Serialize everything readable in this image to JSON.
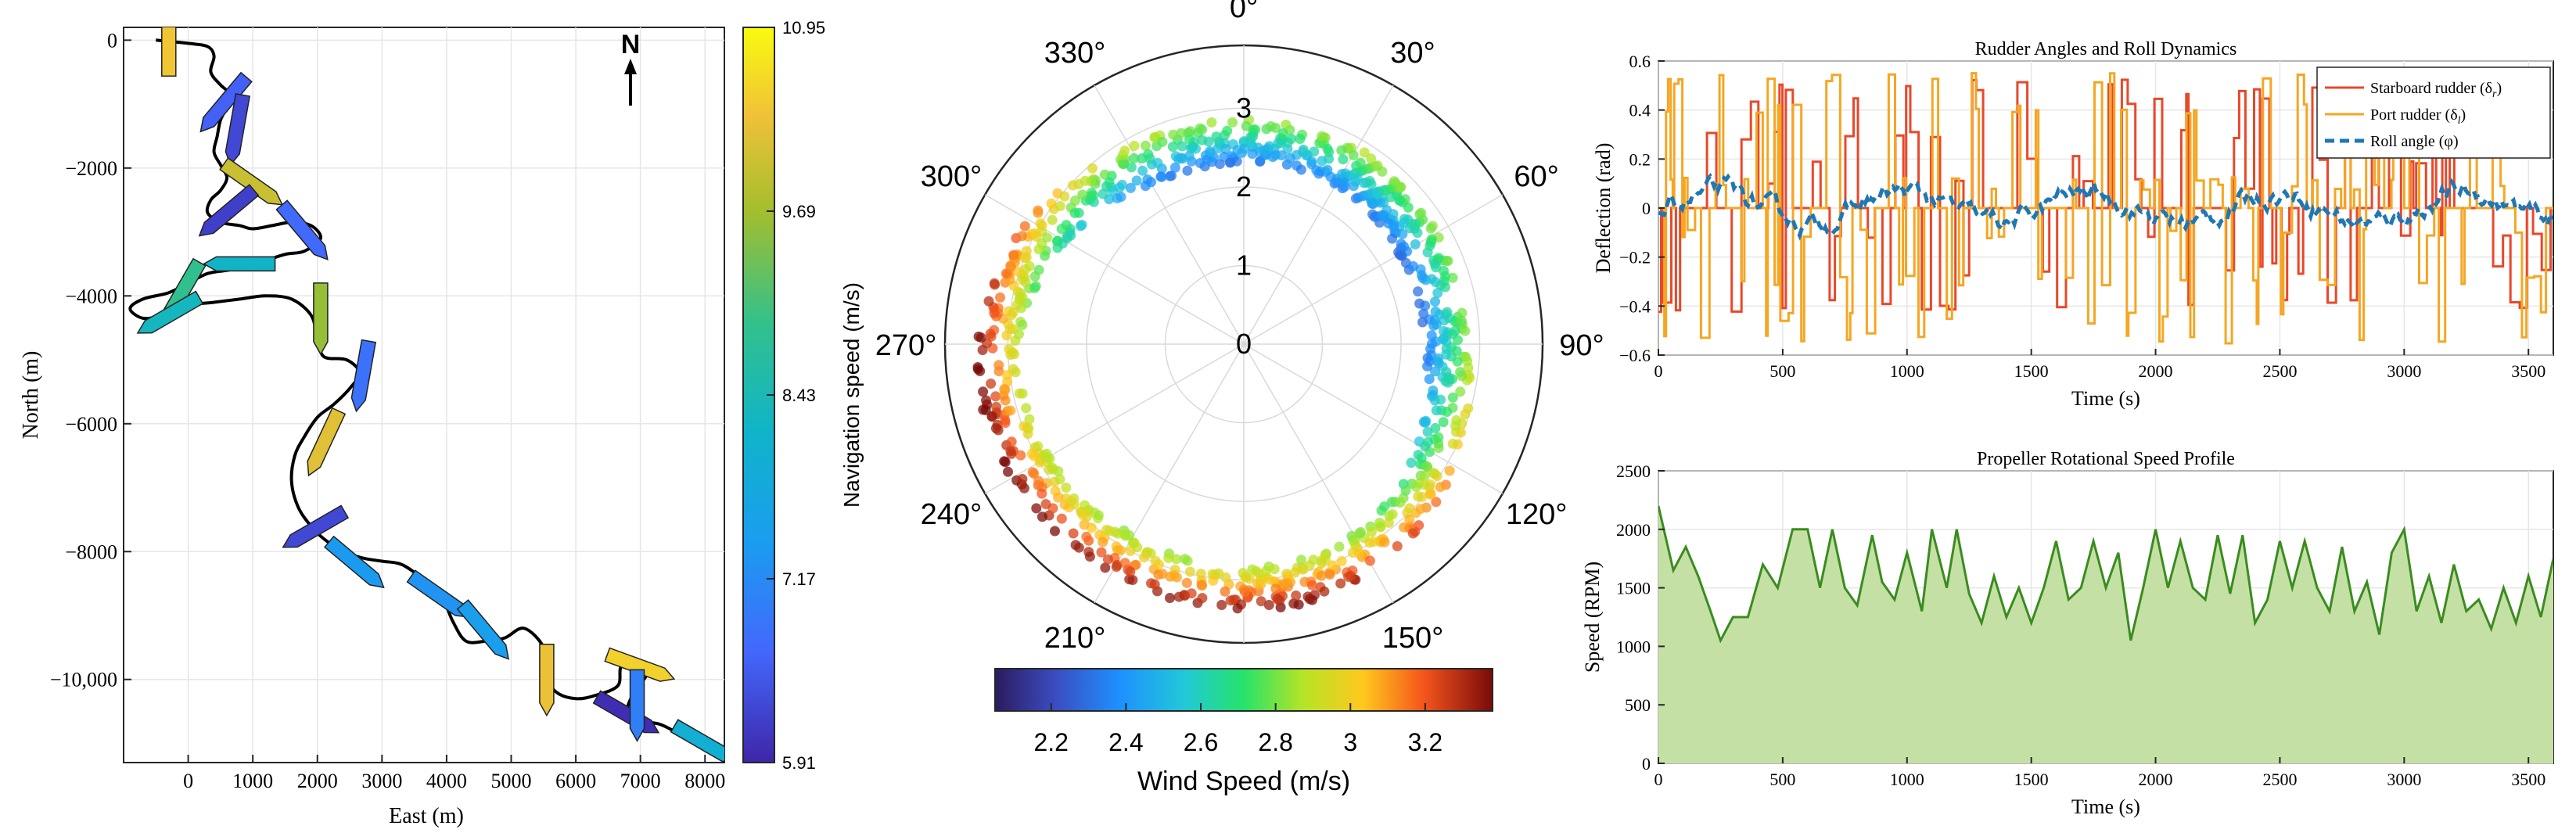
{
  "chart_data": [
    {
      "type": "scatter",
      "subtype": "trajectory",
      "xlabel": "East (m)",
      "ylabel": "North (m)",
      "xlim": [
        -1000,
        8300
      ],
      "ylim": [
        -11300,
        200
      ],
      "xticks": [
        0,
        1000,
        2000,
        3000,
        4000,
        5000,
        6000,
        7000,
        8000
      ],
      "xtick_labels": [
        "0",
        "1000",
        "2000",
        "3000",
        "4000",
        "5000",
        "6000",
        "7000",
        "8000"
      ],
      "yticks": [
        0,
        -2000,
        -4000,
        -6000,
        -8000,
        -10000
      ],
      "ytick_labels": [
        "0",
        "−2000",
        "−4000",
        "−6000",
        "−8000",
        "−10,000"
      ],
      "north_label": "N",
      "colorbar": {
        "label": "Navigation speed (m/s)",
        "min": 5.91,
        "max": 10.95,
        "ticks": [
          10.95,
          9.69,
          8.43,
          7.17,
          5.91
        ],
        "tick_labels": [
          "10.95",
          "9.69",
          "8.43",
          "7.17",
          "5.91"
        ]
      },
      "path": [
        [
          -500,
          0
        ],
        [
          0,
          -50
        ],
        [
          300,
          -100
        ],
        [
          400,
          -250
        ],
        [
          350,
          -500
        ],
        [
          500,
          -700
        ],
        [
          650,
          -850
        ],
        [
          600,
          -1050
        ],
        [
          500,
          -1250
        ],
        [
          450,
          -1500
        ],
        [
          400,
          -1750
        ],
        [
          500,
          -1950
        ],
        [
          600,
          -2150
        ],
        [
          500,
          -2350
        ],
        [
          350,
          -2500
        ],
        [
          300,
          -2700
        ],
        [
          500,
          -2850
        ],
        [
          800,
          -2900
        ],
        [
          1000,
          -2950
        ],
        [
          1300,
          -2900
        ],
        [
          1600,
          -2850
        ],
        [
          1900,
          -2900
        ],
        [
          2050,
          -3100
        ],
        [
          1800,
          -3300
        ],
        [
          1500,
          -3350
        ],
        [
          1200,
          -3450
        ],
        [
          900,
          -3550
        ],
        [
          600,
          -3600
        ],
        [
          300,
          -3650
        ],
        [
          0,
          -3800
        ],
        [
          -300,
          -3950
        ],
        [
          -700,
          -4050
        ],
        [
          -900,
          -4200
        ],
        [
          -700,
          -4350
        ],
        [
          -400,
          -4300
        ],
        [
          0,
          -4150
        ],
        [
          400,
          -4100
        ],
        [
          800,
          -4050
        ],
        [
          1200,
          -4000
        ],
        [
          1600,
          -4050
        ],
        [
          1900,
          -4300
        ],
        [
          2000,
          -4650
        ],
        [
          2100,
          -4950
        ],
        [
          2450,
          -5000
        ],
        [
          2650,
          -5200
        ],
        [
          2500,
          -5450
        ],
        [
          2250,
          -5700
        ],
        [
          2000,
          -5900
        ],
        [
          1800,
          -6200
        ],
        [
          1650,
          -6500
        ],
        [
          1600,
          -6900
        ],
        [
          1700,
          -7300
        ],
        [
          1900,
          -7600
        ],
        [
          2100,
          -7800
        ],
        [
          2400,
          -8000
        ],
        [
          2700,
          -8100
        ],
        [
          3000,
          -8150
        ],
        [
          3300,
          -8200
        ],
        [
          3600,
          -8400
        ],
        [
          3900,
          -8650
        ],
        [
          4100,
          -9100
        ],
        [
          4300,
          -9400
        ],
        [
          4600,
          -9400
        ],
        [
          4900,
          -9350
        ],
        [
          5200,
          -9200
        ],
        [
          5500,
          -9500
        ],
        [
          5500,
          -9900
        ],
        [
          5700,
          -10200
        ],
        [
          6000,
          -10300
        ],
        [
          6300,
          -10250
        ],
        [
          6650,
          -10100
        ],
        [
          6700,
          -9800
        ],
        [
          6900,
          -9700
        ],
        [
          7100,
          -9900
        ],
        [
          6900,
          -10200
        ],
        [
          6800,
          -10500
        ],
        [
          7000,
          -10650
        ],
        [
          7300,
          -10700
        ],
        [
          7600,
          -10850
        ],
        [
          7900,
          -11000
        ],
        [
          8200,
          -11100
        ]
      ],
      "ships": [
        {
          "x": -300,
          "y": -10,
          "heading": 90,
          "speed": 10.4
        },
        {
          "x": 550,
          "y": -1000,
          "heading": -130,
          "speed": 6.6
        },
        {
          "x": 750,
          "y": -1400,
          "heading": -100,
          "speed": 6.3
        },
        {
          "x": 1000,
          "y": -2250,
          "heading": -35,
          "speed": 10.0
        },
        {
          "x": 600,
          "y": -2700,
          "heading": -140,
          "speed": 6.2
        },
        {
          "x": 1800,
          "y": -3000,
          "heading": -50,
          "speed": 6.7
        },
        {
          "x": 800,
          "y": -3500,
          "heading": -180,
          "speed": 8.2
        },
        {
          "x": -100,
          "y": -3950,
          "heading": -120,
          "speed": 8.9
        },
        {
          "x": -300,
          "y": -4300,
          "heading": -150,
          "speed": 8.3
        },
        {
          "x": 2050,
          "y": -4350,
          "heading": -90,
          "speed": 9.6
        },
        {
          "x": 2700,
          "y": -5250,
          "heading": -100,
          "speed": 6.8
        },
        {
          "x": 2100,
          "y": -6300,
          "heading": -115,
          "speed": 10.2
        },
        {
          "x": 1950,
          "y": -7650,
          "heading": -150,
          "speed": 6.3
        },
        {
          "x": 2600,
          "y": -8200,
          "heading": -40,
          "speed": 7.4
        },
        {
          "x": 3900,
          "y": -8700,
          "heading": -35,
          "speed": 7.3
        },
        {
          "x": 4600,
          "y": -9250,
          "heading": -50,
          "speed": 7.5
        },
        {
          "x": 5550,
          "y": -10000,
          "heading": -90,
          "speed": 10.3
        },
        {
          "x": 7000,
          "y": -9800,
          "heading": -20,
          "speed": 10.5
        },
        {
          "x": 6800,
          "y": -10550,
          "heading": -30,
          "speed": 6.0
        },
        {
          "x": 6950,
          "y": -10400,
          "heading": -90,
          "speed": 7.0
        },
        {
          "x": 8000,
          "y": -11000,
          "heading": -30,
          "speed": 8.0
        }
      ]
    },
    {
      "type": "scatter",
      "subtype": "polar",
      "rlim": [
        0,
        3.8
      ],
      "r_ticks": [
        0,
        1,
        2,
        3
      ],
      "r_tick_labels": [
        "0",
        "1",
        "2",
        "3"
      ],
      "theta_ticks": [
        0,
        30,
        60,
        90,
        120,
        150,
        180,
        210,
        240,
        270,
        300,
        330
      ],
      "theta_labels": [
        "0°",
        "30°",
        "60°",
        "90°",
        "120°",
        "150°",
        "180°",
        "210°",
        "240°",
        "270°",
        "300°",
        "330°"
      ],
      "theta_zero": "north",
      "theta_direction": "clockwise",
      "colorbar": {
        "label": "Wind Speed (m/s)",
        "min": 2.05,
        "max": 3.38,
        "ticks": [
          2.2,
          2.4,
          2.6,
          2.8,
          3.0,
          3.2
        ],
        "tick_labels": [
          "2.2",
          "2.4",
          "2.6",
          "2.8",
          "3",
          "3.2"
        ],
        "colormap": "jet"
      },
      "note": "approx. 2000 points; wind speed 2.1-3.4 m/s plotted over 0-360 degrees"
    },
    {
      "type": "line",
      "title": "Rudder Angles and Roll Dynamics",
      "xlabel": "Time (s)",
      "ylabel": "Deflection (rad)",
      "xlim": [
        0,
        3600
      ],
      "ylim": [
        -0.6,
        0.6
      ],
      "xticks": [
        0,
        500,
        1000,
        1500,
        2000,
        2500,
        3000,
        3500
      ],
      "yticks": [
        -0.6,
        -0.4,
        -0.2,
        0,
        0.2,
        0.4,
        0.6
      ],
      "ytick_labels": [
        "−0.6",
        "−0.4",
        "−0.2",
        "0",
        "0.2",
        "0.4",
        "0.6"
      ],
      "legend": "top-right",
      "series": [
        {
          "name": "Starboard rudder (δr)",
          "legend_text": "Starboard rudder (δ",
          "legend_sub": "r",
          "color": "#e8482a",
          "style": "solid",
          "range": [
            -0.45,
            0.52
          ]
        },
        {
          "name": "Port rudder (δl)",
          "legend_text": "Port rudder (δ",
          "legend_sub": "l",
          "color": "#f5a623",
          "style": "solid",
          "range": [
            -0.54,
            0.53
          ]
        },
        {
          "name": "Roll angle (φ)",
          "legend_text": "Roll angle (φ)",
          "legend_sub": "",
          "color": "#1f77b4",
          "style": "dashed",
          "range": [
            -0.18,
            0.17
          ]
        }
      ]
    },
    {
      "type": "area",
      "title": "Propeller Rotational Speed Profile",
      "xlabel": "Time (s)",
      "ylabel": "Speed (RPM)",
      "xlim": [
        0,
        3600
      ],
      "ylim": [
        0,
        2500
      ],
      "xticks": [
        0,
        500,
        1000,
        1500,
        2000,
        2500,
        3000,
        3500
      ],
      "yticks": [
        0,
        500,
        1000,
        1500,
        2000,
        2500
      ],
      "x": [
        0,
        60,
        110,
        160,
        210,
        250,
        300,
        360,
        420,
        480,
        540,
        600,
        650,
        700,
        750,
        800,
        860,
        900,
        950,
        1000,
        1060,
        1100,
        1160,
        1200,
        1250,
        1300,
        1350,
        1400,
        1450,
        1500,
        1550,
        1600,
        1650,
        1700,
        1750,
        1800,
        1850,
        1900,
        1950,
        2000,
        2050,
        2100,
        2150,
        2200,
        2250,
        2300,
        2350,
        2400,
        2450,
        2500,
        2550,
        2600,
        2650,
        2700,
        2750,
        2800,
        2850,
        2900,
        2950,
        3000,
        3050,
        3100,
        3150,
        3200,
        3250,
        3300,
        3350,
        3400,
        3450,
        3500,
        3550,
        3600
      ],
      "values": [
        2200,
        1650,
        1850,
        1600,
        1300,
        1050,
        1250,
        1250,
        1700,
        1500,
        2000,
        2000,
        1500,
        2000,
        1500,
        1350,
        1950,
        1550,
        1400,
        1800,
        1300,
        2000,
        1500,
        2000,
        1450,
        1200,
        1600,
        1250,
        1500,
        1200,
        1500,
        1900,
        1400,
        1500,
        1900,
        1500,
        1800,
        1050,
        1500,
        2000,
        1500,
        1900,
        1500,
        1400,
        1950,
        1450,
        1950,
        1200,
        1400,
        1900,
        1500,
        1900,
        1500,
        1300,
        1850,
        1300,
        1550,
        1100,
        1800,
        2000,
        1300,
        1600,
        1200,
        1700,
        1300,
        1400,
        1150,
        1500,
        1200,
        1600,
        1250,
        1750
      ],
      "color": "#3a8c1f",
      "fill": "#c5e0a5"
    }
  ]
}
